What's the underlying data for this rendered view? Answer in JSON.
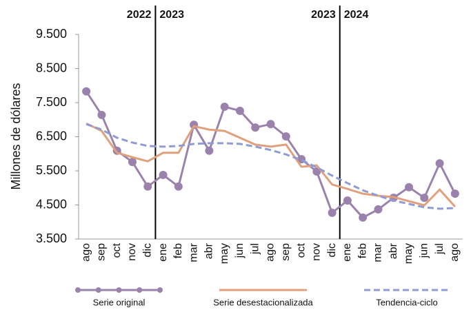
{
  "chart_data": {
    "type": "line",
    "y_label": "Millones de dólares",
    "categories": [
      "ago",
      "sep",
      "oct",
      "nov",
      "dic",
      "ene",
      "feb",
      "mar",
      "abr",
      "may",
      "jun",
      "jul",
      "ago",
      "sep",
      "oct",
      "nov",
      "dic",
      "ene",
      "feb",
      "mar",
      "abr",
      "may",
      "jun",
      "jul",
      "ago"
    ],
    "year_labels": [
      [
        "2022",
        "2023"
      ],
      [
        "2023",
        "2024"
      ]
    ],
    "series": [
      {
        "name": "Serie original",
        "color": "#9b82ad",
        "markers": true,
        "dashed": false,
        "values": [
          7830,
          7140,
          6090,
          5760,
          5040,
          5380,
          5040,
          6850,
          6090,
          7380,
          7260,
          6770,
          6870,
          6510,
          5840,
          5480,
          4270,
          4630,
          4130,
          4370,
          4710,
          5020,
          4710,
          5720,
          4830
        ]
      },
      {
        "name": "Serie desestacionalizada",
        "color": "#e0a07b",
        "markers": false,
        "dashed": false,
        "values": [
          6890,
          6670,
          6030,
          5900,
          5780,
          6030,
          6030,
          6810,
          6710,
          6670,
          6470,
          6270,
          6210,
          6270,
          5620,
          5660,
          5100,
          4970,
          4830,
          4770,
          4730,
          4610,
          4490,
          4950,
          4450
        ]
      },
      {
        "name": "Tendencia-ciclo",
        "color": "#8e9cd3",
        "markers": false,
        "dashed": true,
        "values": [
          6870,
          6710,
          6470,
          6330,
          6230,
          6210,
          6230,
          6290,
          6310,
          6310,
          6290,
          6210,
          6110,
          5980,
          5820,
          5600,
          5360,
          5140,
          4930,
          4770,
          4630,
          4530,
          4430,
          4390,
          4410
        ]
      }
    ],
    "ylim": [
      3500,
      9500
    ],
    "yticks": [
      {
        "value": 3500,
        "label": "3.500"
      },
      {
        "value": 4500,
        "label": "4.500"
      },
      {
        "value": 5500,
        "label": "5.500"
      },
      {
        "value": 6500,
        "label": "6.500"
      },
      {
        "value": 7500,
        "label": "7.500"
      },
      {
        "value": 8500,
        "label": "8.500"
      },
      {
        "value": 9500,
        "label": "9.500"
      }
    ],
    "grid": false
  }
}
